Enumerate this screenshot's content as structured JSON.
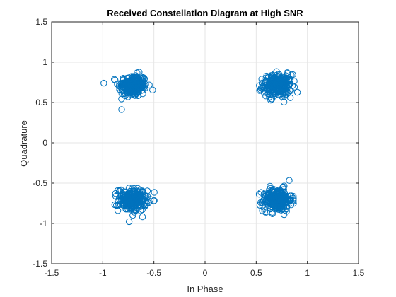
{
  "chart_data": {
    "type": "scatter",
    "title": "Received Constellation Diagram at High SNR",
    "xlabel": "In Phase",
    "ylabel": "Quadrature",
    "xlim": [
      -1.5,
      1.5
    ],
    "ylim": [
      -1.5,
      1.5
    ],
    "xticks": [
      "-1.5",
      "-1",
      "-0.5",
      "0",
      "0.5",
      "1",
      "1.5"
    ],
    "yticks": [
      "-1.5",
      "-1",
      "-0.5",
      "0",
      "0.5",
      "1",
      "1.5"
    ],
    "xtick_values": [
      -1.5,
      -1,
      -0.5,
      0,
      0.5,
      1,
      1.5
    ],
    "ytick_values": [
      -1.5,
      -1,
      -0.5,
      0,
      0.5,
      1,
      1.5
    ],
    "grid": true,
    "marker": "open-circle",
    "clusters": [
      {
        "center": [
          -0.707,
          0.707
        ],
        "spread": 0.07
      },
      {
        "center": [
          0.707,
          0.707
        ],
        "spread": 0.07
      },
      {
        "center": [
          -0.707,
          -0.707
        ],
        "spread": 0.07
      },
      {
        "center": [
          0.707,
          -0.707
        ],
        "spread": 0.07
      }
    ],
    "points_per_cluster": 240,
    "colors": {
      "marker": "#0072BD",
      "grid": "#e6e6e6",
      "axes": "#262626"
    }
  }
}
